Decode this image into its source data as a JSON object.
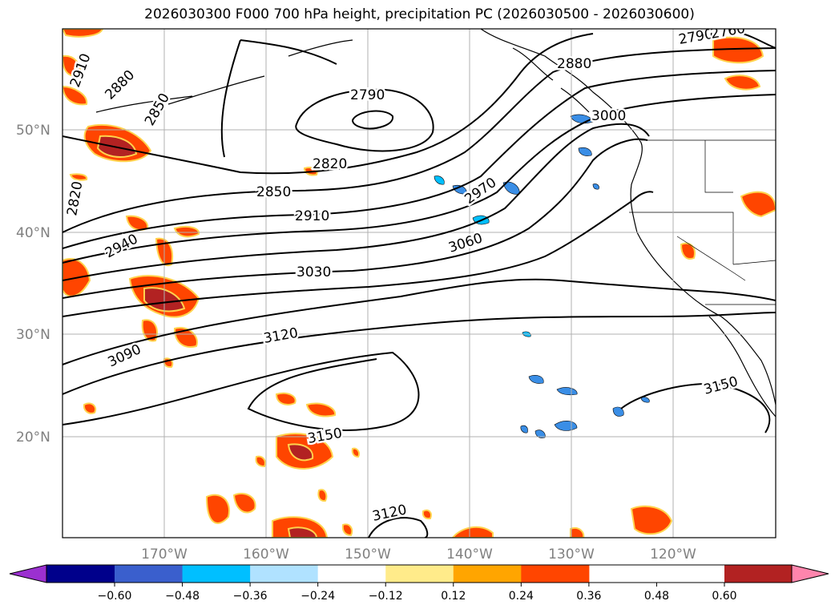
{
  "title": "2026030300 F000 700 hPa height, precipitation PC (2026030500 - 2026030600)",
  "latitude_labels": [
    "50°N",
    "40°N",
    "30°N",
    "20°N"
  ],
  "longitude_labels": [
    "170°W",
    "160°W",
    "150°W",
    "140°W",
    "130°W",
    "120°W"
  ],
  "contour_labels": [
    "2790",
    "2820",
    "2850",
    "2880",
    "2910",
    "2940",
    "2970",
    "3000",
    "3030",
    "3060",
    "3090",
    "3120",
    "3150",
    "2760"
  ],
  "colorbar": {
    "tick_labels": [
      "−0.60",
      "−0.48",
      "−0.36",
      "−0.24",
      "−0.12",
      "0.12",
      "0.24",
      "0.36",
      "0.48",
      "0.60"
    ],
    "colors": [
      "#9b30d0",
      "#00008b",
      "#3a5fcd",
      "#00bfff",
      "#b0e2ff",
      "#ffffff",
      "#ffeb8a",
      "#ffa500",
      "#ff4500",
      "#b22222",
      "#ff85ad"
    ]
  },
  "colors": {
    "positive_core": "#b22222",
    "positive_mid": "#ff4500",
    "positive_edge": "#ffa500",
    "negative": "#3a8ee6"
  }
}
